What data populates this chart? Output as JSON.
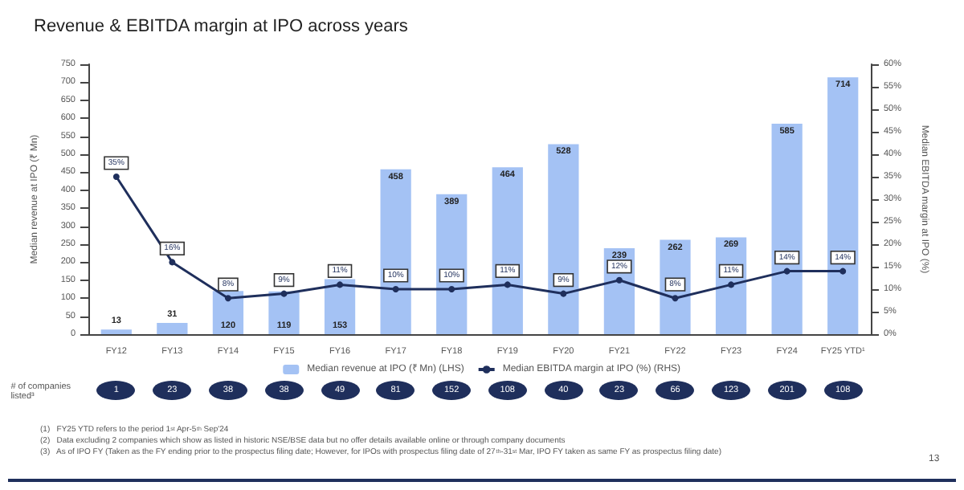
{
  "chart_data": {
    "type": "bar",
    "title": "Revenue & EBITDA margin at IPO across years",
    "categories": [
      "FY12",
      "FY13",
      "FY14",
      "FY15",
      "FY16",
      "FY17",
      "FY18",
      "FY19",
      "FY20",
      "FY21",
      "FY22",
      "FY23",
      "FY24",
      "FY25 YTD¹"
    ],
    "series": [
      {
        "name": "Median revenue at IPO (₹ Mn) (LHS)",
        "color": "#a4c2f4",
        "values": [
          13,
          31,
          120,
          119,
          153,
          458,
          389,
          464,
          528,
          239,
          262,
          269,
          585,
          714
        ]
      },
      {
        "name": "Median EBITDA margin at IPO (%) (RHS)",
        "type": "line",
        "axis": "y2",
        "color": "#1f2f5c",
        "marker": "circle",
        "values": [
          35,
          16,
          8,
          9,
          11,
          10,
          10,
          11,
          9,
          12,
          8,
          11,
          14,
          14
        ],
        "value_labels": [
          "35%",
          "16%",
          "8%",
          "9%",
          "11%",
          "10%",
          "10%",
          "11%",
          "9%",
          "12%",
          "8%",
          "11%",
          "14%",
          "14%"
        ]
      }
    ],
    "ylabel": "Median revenue at IPO (₹ Mn)",
    "y2label": "Median EBITDA margin at IPO (%)",
    "ylim": [
      0,
      750
    ],
    "yticks": [
      0,
      50,
      100,
      150,
      200,
      250,
      300,
      350,
      400,
      450,
      500,
      550,
      600,
      650,
      700,
      750
    ],
    "y2lim": [
      0,
      60
    ],
    "y2ticks": [
      {
        "value": 0,
        "label": "0%"
      },
      {
        "value": 5,
        "label": "5%"
      },
      {
        "value": 10,
        "label": "10%"
      },
      {
        "value": 15,
        "label": "15%"
      },
      {
        "value": 20,
        "label": "20%"
      },
      {
        "value": 25,
        "label": "25%"
      },
      {
        "value": 30,
        "label": "30%"
      },
      {
        "value": 35,
        "label": "35%"
      },
      {
        "value": 40,
        "label": "40%"
      },
      {
        "value": 45,
        "label": "45%"
      },
      {
        "value": 50,
        "label": "50%"
      },
      {
        "value": 55,
        "label": "55%"
      },
      {
        "value": 60,
        "label": "60%"
      }
    ],
    "data_labels": true,
    "legend": "bottom",
    "grid": false,
    "annotations": [
      "# of companies listed³",
      "1 23 38 38 49 81 152 108 40 23 66 123 201 108",
      "(1)   FY25 YTD refers to the period 1$^{st}$ Apr-5$^{th}$ Sep'24",
      "(2)   Data excluding 2 companies which show as listed in historic NSE/BSE data but no offer details available online or through company documents",
      "(3)   As of IPO FY (Taken as the FY ending prior to the prospectus filing date; However, for IPOs with prospectus filing date of 27$^{th}$-31$^{st}$ Mar, IPO FY taken as same FY as prospectus filing date)",
      "13"
    ]
  }
}
